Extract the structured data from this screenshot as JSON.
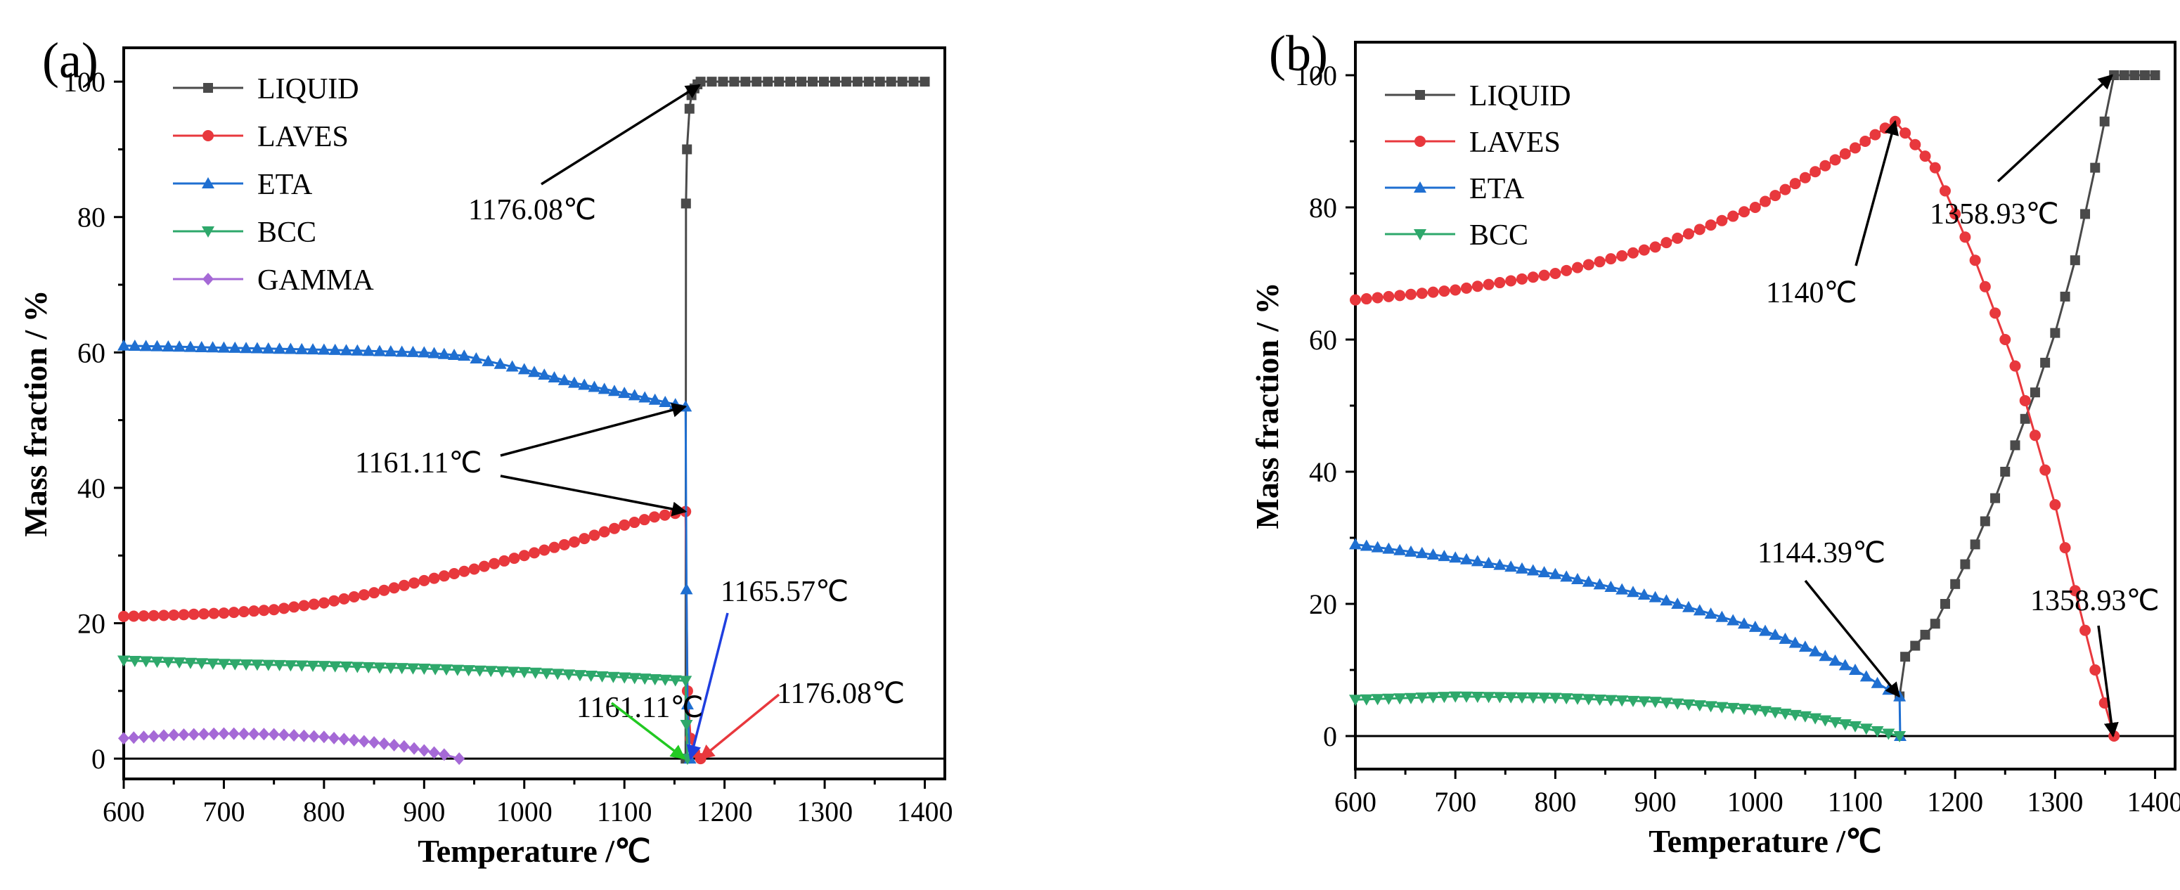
{
  "chart_data": [
    {
      "type": "line",
      "panel_label": "(a)",
      "xlabel": "Temperature /℃",
      "ylabel": "Mass fraction / %",
      "xlim": [
        600,
        1420
      ],
      "ylim": [
        -3,
        105
      ],
      "xticks": [
        600,
        700,
        800,
        900,
        1000,
        1100,
        1200,
        1300,
        1400
      ],
      "yticks": [
        0,
        20,
        40,
        60,
        80,
        100
      ],
      "legend_position": "top-left",
      "series": [
        {
          "name": "LIQUID",
          "color": "#4a4a4a",
          "marker": "square",
          "x": [
            1161.11,
            1161.5,
            1162.5,
            1165,
            1167,
            1170,
            1173,
            1176.08,
            1400
          ],
          "y": [
            0,
            82,
            90,
            96,
            98,
            99,
            99.6,
            100,
            100
          ]
        },
        {
          "name": "LAVES",
          "color": "#e8383d",
          "marker": "circle",
          "x": [
            600,
            650,
            700,
            750,
            800,
            850,
            900,
            950,
            1000,
            1050,
            1100,
            1130,
            1161.11,
            1163,
            1166,
            1170,
            1176.08
          ],
          "y": [
            21,
            21.2,
            21.5,
            22,
            23,
            24.5,
            26.3,
            28,
            30,
            32,
            34.5,
            35.7,
            36.5,
            10,
            3,
            1,
            0
          ]
        },
        {
          "name": "ETA",
          "color": "#1f6fd1",
          "marker": "triangle-up",
          "x": [
            600,
            700,
            800,
            900,
            940,
            1000,
            1050,
            1100,
            1161.11,
            1162,
            1163,
            1165.57
          ],
          "y": [
            61,
            60.7,
            60.4,
            60,
            59.5,
            57.5,
            55.5,
            54,
            52,
            25,
            8,
            0
          ]
        },
        {
          "name": "BCC",
          "color": "#2ea86b",
          "marker": "triangle-down",
          "x": [
            600,
            700,
            800,
            900,
            1000,
            1100,
            1161.11,
            1162,
            1163
          ],
          "y": [
            14.5,
            14,
            13.7,
            13.3,
            12.8,
            12,
            11.5,
            5,
            0
          ]
        },
        {
          "name": "GAMMA",
          "color": "#a569d6",
          "marker": "diamond",
          "x": [
            600,
            650,
            700,
            750,
            800,
            850,
            880,
            900,
            920,
            935
          ],
          "y": [
            3,
            3.5,
            3.7,
            3.6,
            3.2,
            2.4,
            1.8,
            1.2,
            0.6,
            0
          ]
        }
      ],
      "annotations": [
        {
          "text": "1176.08℃",
          "color": "#000000",
          "arrow_to": [
            [
              1175,
              99.5
            ]
          ]
        },
        {
          "text": "1161.11℃",
          "color": "#000000",
          "arrow_to": [
            [
              1161,
              52
            ],
            [
              1161,
              36.5
            ]
          ]
        },
        {
          "text": "1165.57℃",
          "color": "#1f3fe0",
          "arrow_to": [
            [
              1166,
              0
            ]
          ]
        },
        {
          "text": "1176.08℃",
          "color": "#e8383d",
          "arrow_to": [
            [
              1176,
              0
            ]
          ]
        },
        {
          "text": "1161.11℃",
          "color": "#22c922",
          "arrow_to": [
            [
              1160,
              0
            ]
          ]
        }
      ]
    },
    {
      "type": "line",
      "panel_label": "(b)",
      "xlabel": "Temperature /℃",
      "ylabel": "Mass fraction / %",
      "xlim": [
        600,
        1420
      ],
      "ylim": [
        -5,
        105
      ],
      "xticks": [
        600,
        700,
        800,
        900,
        1000,
        1100,
        1200,
        1300,
        1400
      ],
      "yticks": [
        0,
        20,
        40,
        60,
        80,
        100
      ],
      "legend_position": "top-left",
      "series": [
        {
          "name": "LIQUID",
          "color": "#4a4a4a",
          "marker": "square",
          "x": [
            1144.39,
            1150,
            1180,
            1200,
            1220,
            1240,
            1260,
            1280,
            1300,
            1320,
            1340,
            1358.93,
            1400
          ],
          "y": [
            6,
            12,
            17,
            23,
            29,
            36,
            44,
            52,
            61,
            72,
            86,
            100,
            100
          ]
        },
        {
          "name": "LAVES",
          "color": "#e8383d",
          "marker": "circle",
          "x": [
            600,
            700,
            800,
            900,
            1000,
            1050,
            1100,
            1140,
            1180,
            1220,
            1260,
            1300,
            1320,
            1340,
            1358.93
          ],
          "y": [
            66,
            67.5,
            70,
            74,
            80,
            84.5,
            89,
            93,
            86,
            72,
            56,
            35,
            22,
            10,
            0
          ]
        },
        {
          "name": "ETA",
          "color": "#1f6fd1",
          "marker": "triangle-up",
          "x": [
            600,
            700,
            800,
            900,
            1000,
            1050,
            1100,
            1144.39,
            1145
          ],
          "y": [
            29,
            27,
            24.5,
            21,
            16.5,
            13.5,
            10,
            6,
            0
          ]
        },
        {
          "name": "BCC",
          "color": "#2ea86b",
          "marker": "triangle-down",
          "x": [
            600,
            700,
            800,
            900,
            1000,
            1050,
            1100,
            1144.39
          ],
          "y": [
            5.5,
            6,
            5.8,
            5.2,
            4,
            3,
            1.5,
            0
          ]
        }
      ],
      "annotations": [
        {
          "text": "1140℃",
          "color": "#000000",
          "arrow_to": [
            [
              1140,
              93
            ]
          ]
        },
        {
          "text": "1358.93℃",
          "color": "#000000",
          "arrow_to": [
            [
              1357,
              100
            ]
          ]
        },
        {
          "text": "1144.39℃",
          "color": "#000000",
          "arrow_to": [
            [
              1144,
              6
            ]
          ]
        },
        {
          "text": "1358.93℃",
          "color": "#000000",
          "arrow_to": [
            [
              1358,
              0
            ]
          ]
        }
      ]
    }
  ]
}
